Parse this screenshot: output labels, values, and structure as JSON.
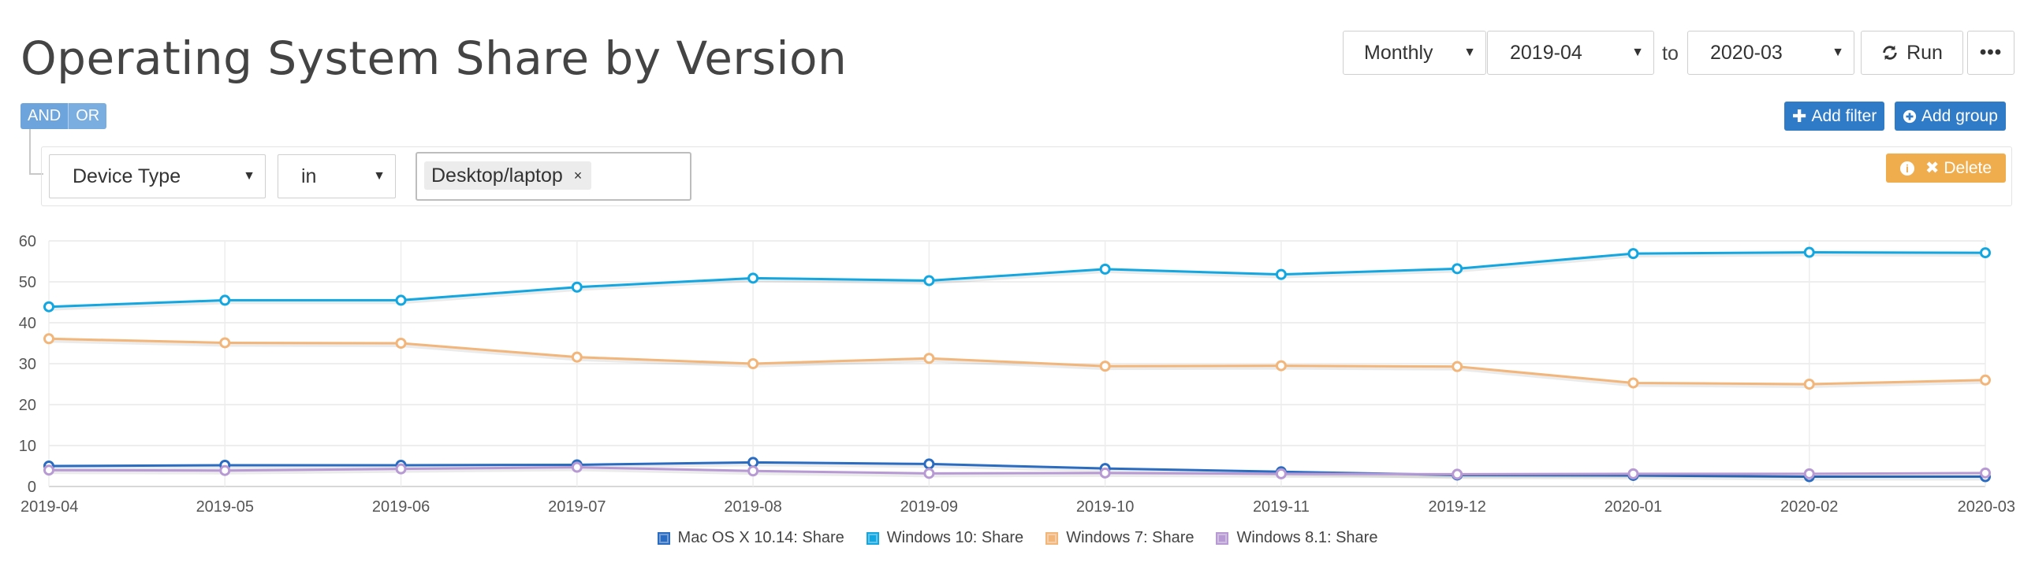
{
  "page": {
    "title": "Operating System Share by Version"
  },
  "controls": {
    "period": "Monthly",
    "from": "2019-04",
    "to_label": "to",
    "to": "2020-03",
    "run_label": "Run",
    "more_label": "•••"
  },
  "logic": {
    "and_label": "AND",
    "or_label": "OR"
  },
  "actions": {
    "add_filter": "Add filter",
    "add_group": "Add group",
    "delete": "Delete"
  },
  "filter": {
    "field": "Device Type",
    "operator": "in",
    "values": [
      "Desktop/laptop"
    ]
  },
  "chart_data": {
    "type": "line",
    "title": "",
    "xlabel": "",
    "ylabel": "",
    "ylim": [
      0,
      60
    ],
    "yticks": [
      0,
      10,
      20,
      30,
      40,
      50,
      60
    ],
    "grid": true,
    "legend_position": "bottom-center",
    "categories": [
      "2019-04",
      "2019-05",
      "2019-06",
      "2019-07",
      "2019-08",
      "2019-09",
      "2019-10",
      "2019-11",
      "2019-12",
      "2020-01",
      "2020-02",
      "2020-03"
    ],
    "series": [
      {
        "name": "Mac OS X 10.14: Share",
        "color": "#2a6cc1",
        "values": [
          5.0,
          5.2,
          5.2,
          5.3,
          5.9,
          5.5,
          4.4,
          3.6,
          2.8,
          2.7,
          2.4,
          2.4
        ]
      },
      {
        "name": "Windows 10: Share",
        "color": "#12a7e0",
        "values": [
          43.9,
          45.5,
          45.5,
          48.7,
          50.9,
          50.3,
          53.1,
          51.8,
          53.2,
          56.9,
          57.2,
          57.1
        ]
      },
      {
        "name": "Windows 7: Share",
        "color": "#f2b57a",
        "values": [
          36.1,
          35.1,
          35.0,
          31.6,
          30.0,
          31.3,
          29.4,
          29.5,
          29.3,
          25.3,
          25.0,
          26.0
        ]
      },
      {
        "name": "Windows 8.1: Share",
        "color": "#b79ad3",
        "values": [
          4.0,
          3.9,
          4.3,
          4.7,
          3.8,
          3.2,
          3.3,
          3.1,
          3.0,
          3.1,
          3.1,
          3.3
        ]
      }
    ]
  }
}
